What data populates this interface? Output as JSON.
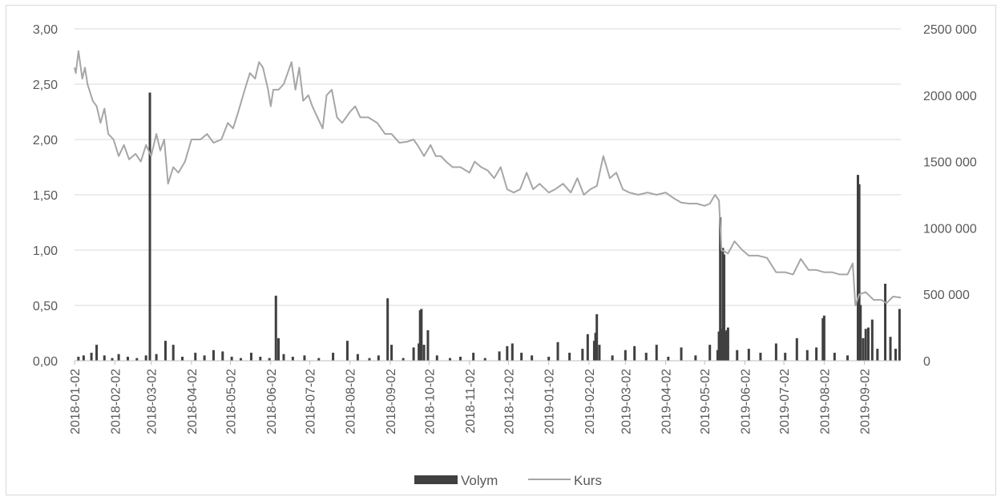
{
  "chart_data": {
    "type": "bar+line",
    "title": "",
    "xlabel": "",
    "ylabel_left": "",
    "ylabel_right": "",
    "x_tick_labels": [
      "2018-01-02",
      "2018-02-02",
      "2018-03-02",
      "2018-04-02",
      "2018-05-02",
      "2018-06-02",
      "2018-07-02",
      "2018-08-02",
      "2018-09-02",
      "2018-10-02",
      "2018-11-02",
      "2018-12-02",
      "2019-01-02",
      "2019-02-02",
      "2019-03-02",
      "2019-04-02",
      "2019-05-02",
      "2019-06-02",
      "2019-07-02",
      "2019-08-02",
      "2019-09-02"
    ],
    "x_range": [
      "2018-01-02",
      "2019-09-30"
    ],
    "y_left": {
      "min": 0,
      "max": 3,
      "ticks": [
        "0,00",
        "0,50",
        "1,00",
        "1,50",
        "2,00",
        "2,50",
        "3,00"
      ]
    },
    "y_right": {
      "min": 0,
      "max": 2500000,
      "ticks": [
        "0",
        "500 000",
        "1000 000",
        "1500 000",
        "2000 000",
        "2500 000"
      ]
    },
    "grid": "horizontal",
    "legend": {
      "position": "bottom",
      "entries": [
        {
          "label": "Volym",
          "color": "#404040",
          "kind": "bar"
        },
        {
          "label": "Kurs",
          "color": "#a6a6a6",
          "kind": "line"
        }
      ]
    },
    "series": [
      {
        "name": "Kurs",
        "axis": "left",
        "color": "#a6a6a6",
        "points": [
          [
            "2018-01-02",
            2.65
          ],
          [
            "2018-01-03",
            2.6
          ],
          [
            "2018-01-05",
            2.8
          ],
          [
            "2018-01-08",
            2.55
          ],
          [
            "2018-01-10",
            2.65
          ],
          [
            "2018-01-12",
            2.5
          ],
          [
            "2018-01-16",
            2.35
          ],
          [
            "2018-01-19",
            2.3
          ],
          [
            "2018-01-22",
            2.15
          ],
          [
            "2018-01-25",
            2.28
          ],
          [
            "2018-01-28",
            2.05
          ],
          [
            "2018-02-01",
            2.0
          ],
          [
            "2018-02-05",
            1.85
          ],
          [
            "2018-02-09",
            1.95
          ],
          [
            "2018-02-13",
            1.82
          ],
          [
            "2018-02-18",
            1.87
          ],
          [
            "2018-02-22",
            1.8
          ],
          [
            "2018-02-26",
            1.95
          ],
          [
            "2018-03-02",
            1.85
          ],
          [
            "2018-03-06",
            2.05
          ],
          [
            "2018-03-09",
            1.9
          ],
          [
            "2018-03-12",
            2.0
          ],
          [
            "2018-03-15",
            1.6
          ],
          [
            "2018-03-19",
            1.75
          ],
          [
            "2018-03-23",
            1.7
          ],
          [
            "2018-03-28",
            1.8
          ],
          [
            "2018-04-02",
            2.0
          ],
          [
            "2018-04-09",
            2.0
          ],
          [
            "2018-04-14",
            2.05
          ],
          [
            "2018-04-19",
            1.97
          ],
          [
            "2018-04-25",
            2.0
          ],
          [
            "2018-04-30",
            2.15
          ],
          [
            "2018-05-04",
            2.1
          ],
          [
            "2018-05-08",
            2.25
          ],
          [
            "2018-05-13",
            2.45
          ],
          [
            "2018-05-17",
            2.6
          ],
          [
            "2018-05-21",
            2.55
          ],
          [
            "2018-05-24",
            2.7
          ],
          [
            "2018-05-27",
            2.65
          ],
          [
            "2018-05-31",
            2.45
          ],
          [
            "2018-06-02",
            2.3
          ],
          [
            "2018-06-04",
            2.45
          ],
          [
            "2018-06-08",
            2.45
          ],
          [
            "2018-06-12",
            2.5
          ],
          [
            "2018-06-15",
            2.6
          ],
          [
            "2018-06-18",
            2.7
          ],
          [
            "2018-06-21",
            2.45
          ],
          [
            "2018-06-24",
            2.65
          ],
          [
            "2018-06-27",
            2.35
          ],
          [
            "2018-07-01",
            2.4
          ],
          [
            "2018-07-04",
            2.3
          ],
          [
            "2018-07-08",
            2.2
          ],
          [
            "2018-07-12",
            2.1
          ],
          [
            "2018-07-15",
            2.4
          ],
          [
            "2018-07-19",
            2.45
          ],
          [
            "2018-07-23",
            2.2
          ],
          [
            "2018-07-27",
            2.15
          ],
          [
            "2018-08-02",
            2.25
          ],
          [
            "2018-08-06",
            2.3
          ],
          [
            "2018-08-10",
            2.2
          ],
          [
            "2018-08-16",
            2.2
          ],
          [
            "2018-08-23",
            2.15
          ],
          [
            "2018-08-29",
            2.05
          ],
          [
            "2018-09-03",
            2.05
          ],
          [
            "2018-09-09",
            1.97
          ],
          [
            "2018-09-15",
            1.98
          ],
          [
            "2018-09-20",
            2.0
          ],
          [
            "2018-09-24",
            1.93
          ],
          [
            "2018-09-28",
            1.85
          ],
          [
            "2018-10-03",
            1.95
          ],
          [
            "2018-10-07",
            1.85
          ],
          [
            "2018-10-11",
            1.85
          ],
          [
            "2018-10-15",
            1.8
          ],
          [
            "2018-10-20",
            1.75
          ],
          [
            "2018-10-26",
            1.75
          ],
          [
            "2018-11-02",
            1.7
          ],
          [
            "2018-11-06",
            1.8
          ],
          [
            "2018-11-11",
            1.75
          ],
          [
            "2018-11-16",
            1.72
          ],
          [
            "2018-11-21",
            1.65
          ],
          [
            "2018-11-26",
            1.75
          ],
          [
            "2018-12-01",
            1.55
          ],
          [
            "2018-12-06",
            1.52
          ],
          [
            "2018-12-11",
            1.55
          ],
          [
            "2018-12-16",
            1.7
          ],
          [
            "2018-12-21",
            1.55
          ],
          [
            "2018-12-26",
            1.6
          ],
          [
            "2019-01-02",
            1.52
          ],
          [
            "2019-01-07",
            1.55
          ],
          [
            "2019-01-13",
            1.6
          ],
          [
            "2019-01-19",
            1.52
          ],
          [
            "2019-01-24",
            1.65
          ],
          [
            "2019-01-29",
            1.5
          ],
          [
            "2019-02-03",
            1.55
          ],
          [
            "2019-02-08",
            1.58
          ],
          [
            "2019-02-13",
            1.85
          ],
          [
            "2019-02-18",
            1.65
          ],
          [
            "2019-02-23",
            1.7
          ],
          [
            "2019-02-28",
            1.55
          ],
          [
            "2019-03-05",
            1.52
          ],
          [
            "2019-03-12",
            1.5
          ],
          [
            "2019-03-19",
            1.52
          ],
          [
            "2019-03-26",
            1.5
          ],
          [
            "2019-04-02",
            1.52
          ],
          [
            "2019-04-08",
            1.47
          ],
          [
            "2019-04-14",
            1.43
          ],
          [
            "2019-04-20",
            1.42
          ],
          [
            "2019-04-26",
            1.42
          ],
          [
            "2019-05-02",
            1.4
          ],
          [
            "2019-05-06",
            1.42
          ],
          [
            "2019-05-10",
            1.5
          ],
          [
            "2019-05-13",
            1.45
          ],
          [
            "2019-05-15",
            1.0
          ],
          [
            "2019-05-20",
            0.97
          ],
          [
            "2019-05-25",
            1.08
          ],
          [
            "2019-05-31",
            1.0
          ],
          [
            "2019-06-05",
            0.95
          ],
          [
            "2019-06-12",
            0.95
          ],
          [
            "2019-06-19",
            0.93
          ],
          [
            "2019-06-26",
            0.8
          ],
          [
            "2019-07-03",
            0.8
          ],
          [
            "2019-07-09",
            0.78
          ],
          [
            "2019-07-15",
            0.92
          ],
          [
            "2019-07-21",
            0.82
          ],
          [
            "2019-07-27",
            0.82
          ],
          [
            "2019-08-02",
            0.8
          ],
          [
            "2019-08-08",
            0.8
          ],
          [
            "2019-08-14",
            0.78
          ],
          [
            "2019-08-20",
            0.78
          ],
          [
            "2019-08-24",
            0.88
          ],
          [
            "2019-08-26",
            0.5
          ],
          [
            "2019-08-29",
            0.6
          ],
          [
            "2019-09-03",
            0.62
          ],
          [
            "2019-09-09",
            0.55
          ],
          [
            "2019-09-15",
            0.55
          ],
          [
            "2019-09-19",
            0.52
          ],
          [
            "2019-09-24",
            0.58
          ],
          [
            "2019-09-30",
            0.57
          ]
        ]
      },
      {
        "name": "Volym",
        "axis": "right",
        "color": "#404040",
        "points": [
          [
            "2018-01-05",
            30000
          ],
          [
            "2018-01-09",
            40000
          ],
          [
            "2018-01-15",
            60000
          ],
          [
            "2018-01-19",
            120000
          ],
          [
            "2018-01-25",
            40000
          ],
          [
            "2018-01-31",
            20000
          ],
          [
            "2018-02-05",
            50000
          ],
          [
            "2018-02-12",
            30000
          ],
          [
            "2018-02-19",
            20000
          ],
          [
            "2018-02-26",
            40000
          ],
          [
            "2018-03-01",
            2020000
          ],
          [
            "2018-03-06",
            50000
          ],
          [
            "2018-03-13",
            150000
          ],
          [
            "2018-03-19",
            120000
          ],
          [
            "2018-03-26",
            30000
          ],
          [
            "2018-04-05",
            60000
          ],
          [
            "2018-04-12",
            40000
          ],
          [
            "2018-04-19",
            80000
          ],
          [
            "2018-04-26",
            70000
          ],
          [
            "2018-05-03",
            30000
          ],
          [
            "2018-05-10",
            20000
          ],
          [
            "2018-05-18",
            60000
          ],
          [
            "2018-05-25",
            30000
          ],
          [
            "2018-06-01",
            20000
          ],
          [
            "2018-06-06",
            490000
          ],
          [
            "2018-06-08",
            170000
          ],
          [
            "2018-06-12",
            50000
          ],
          [
            "2018-06-19",
            30000
          ],
          [
            "2018-06-28",
            40000
          ],
          [
            "2018-07-09",
            20000
          ],
          [
            "2018-07-20",
            60000
          ],
          [
            "2018-07-31",
            150000
          ],
          [
            "2018-08-08",
            50000
          ],
          [
            "2018-08-17",
            20000
          ],
          [
            "2018-08-24",
            40000
          ],
          [
            "2018-08-31",
            470000
          ],
          [
            "2018-09-03",
            120000
          ],
          [
            "2018-09-12",
            20000
          ],
          [
            "2018-09-20",
            100000
          ],
          [
            "2018-09-24",
            130000
          ],
          [
            "2018-09-25",
            380000
          ],
          [
            "2018-09-26",
            390000
          ],
          [
            "2018-09-28",
            120000
          ],
          [
            "2018-10-01",
            230000
          ],
          [
            "2018-10-08",
            40000
          ],
          [
            "2018-10-18",
            20000
          ],
          [
            "2018-10-26",
            30000
          ],
          [
            "2018-11-05",
            60000
          ],
          [
            "2018-11-14",
            20000
          ],
          [
            "2018-11-25",
            70000
          ],
          [
            "2018-12-01",
            110000
          ],
          [
            "2018-12-05",
            130000
          ],
          [
            "2018-12-12",
            60000
          ],
          [
            "2018-12-20",
            40000
          ],
          [
            "2019-01-02",
            30000
          ],
          [
            "2019-01-09",
            140000
          ],
          [
            "2019-01-18",
            60000
          ],
          [
            "2019-01-28",
            90000
          ],
          [
            "2019-02-01",
            200000
          ],
          [
            "2019-02-06",
            150000
          ],
          [
            "2019-02-07",
            210000
          ],
          [
            "2019-02-08",
            350000
          ],
          [
            "2019-02-10",
            120000
          ],
          [
            "2019-02-20",
            40000
          ],
          [
            "2019-03-02",
            80000
          ],
          [
            "2019-03-09",
            110000
          ],
          [
            "2019-03-18",
            60000
          ],
          [
            "2019-03-26",
            120000
          ],
          [
            "2019-04-04",
            30000
          ],
          [
            "2019-04-14",
            100000
          ],
          [
            "2019-04-25",
            40000
          ],
          [
            "2019-05-06",
            120000
          ],
          [
            "2019-05-12",
            80000
          ],
          [
            "2019-05-13",
            220000
          ],
          [
            "2019-05-14",
            1080000
          ],
          [
            "2019-05-15",
            240000
          ],
          [
            "2019-05-16",
            850000
          ],
          [
            "2019-05-17",
            800000
          ],
          [
            "2019-05-18",
            220000
          ],
          [
            "2019-05-19",
            230000
          ],
          [
            "2019-05-20",
            250000
          ],
          [
            "2019-05-27",
            80000
          ],
          [
            "2019-06-05",
            90000
          ],
          [
            "2019-06-14",
            60000
          ],
          [
            "2019-06-26",
            130000
          ],
          [
            "2019-07-03",
            60000
          ],
          [
            "2019-07-12",
            170000
          ],
          [
            "2019-07-20",
            80000
          ],
          [
            "2019-07-27",
            100000
          ],
          [
            "2019-08-01",
            320000
          ],
          [
            "2019-08-02",
            340000
          ],
          [
            "2019-08-10",
            60000
          ],
          [
            "2019-08-20",
            40000
          ],
          [
            "2019-08-28",
            1400000
          ],
          [
            "2019-08-29",
            1330000
          ],
          [
            "2019-08-30",
            420000
          ],
          [
            "2019-09-01",
            170000
          ],
          [
            "2019-09-03",
            240000
          ],
          [
            "2019-09-05",
            250000
          ],
          [
            "2019-09-08",
            310000
          ],
          [
            "2019-09-12",
            90000
          ],
          [
            "2019-09-18",
            580000
          ],
          [
            "2019-09-22",
            180000
          ],
          [
            "2019-09-26",
            90000
          ],
          [
            "2019-09-29",
            390000
          ]
        ]
      }
    ]
  }
}
